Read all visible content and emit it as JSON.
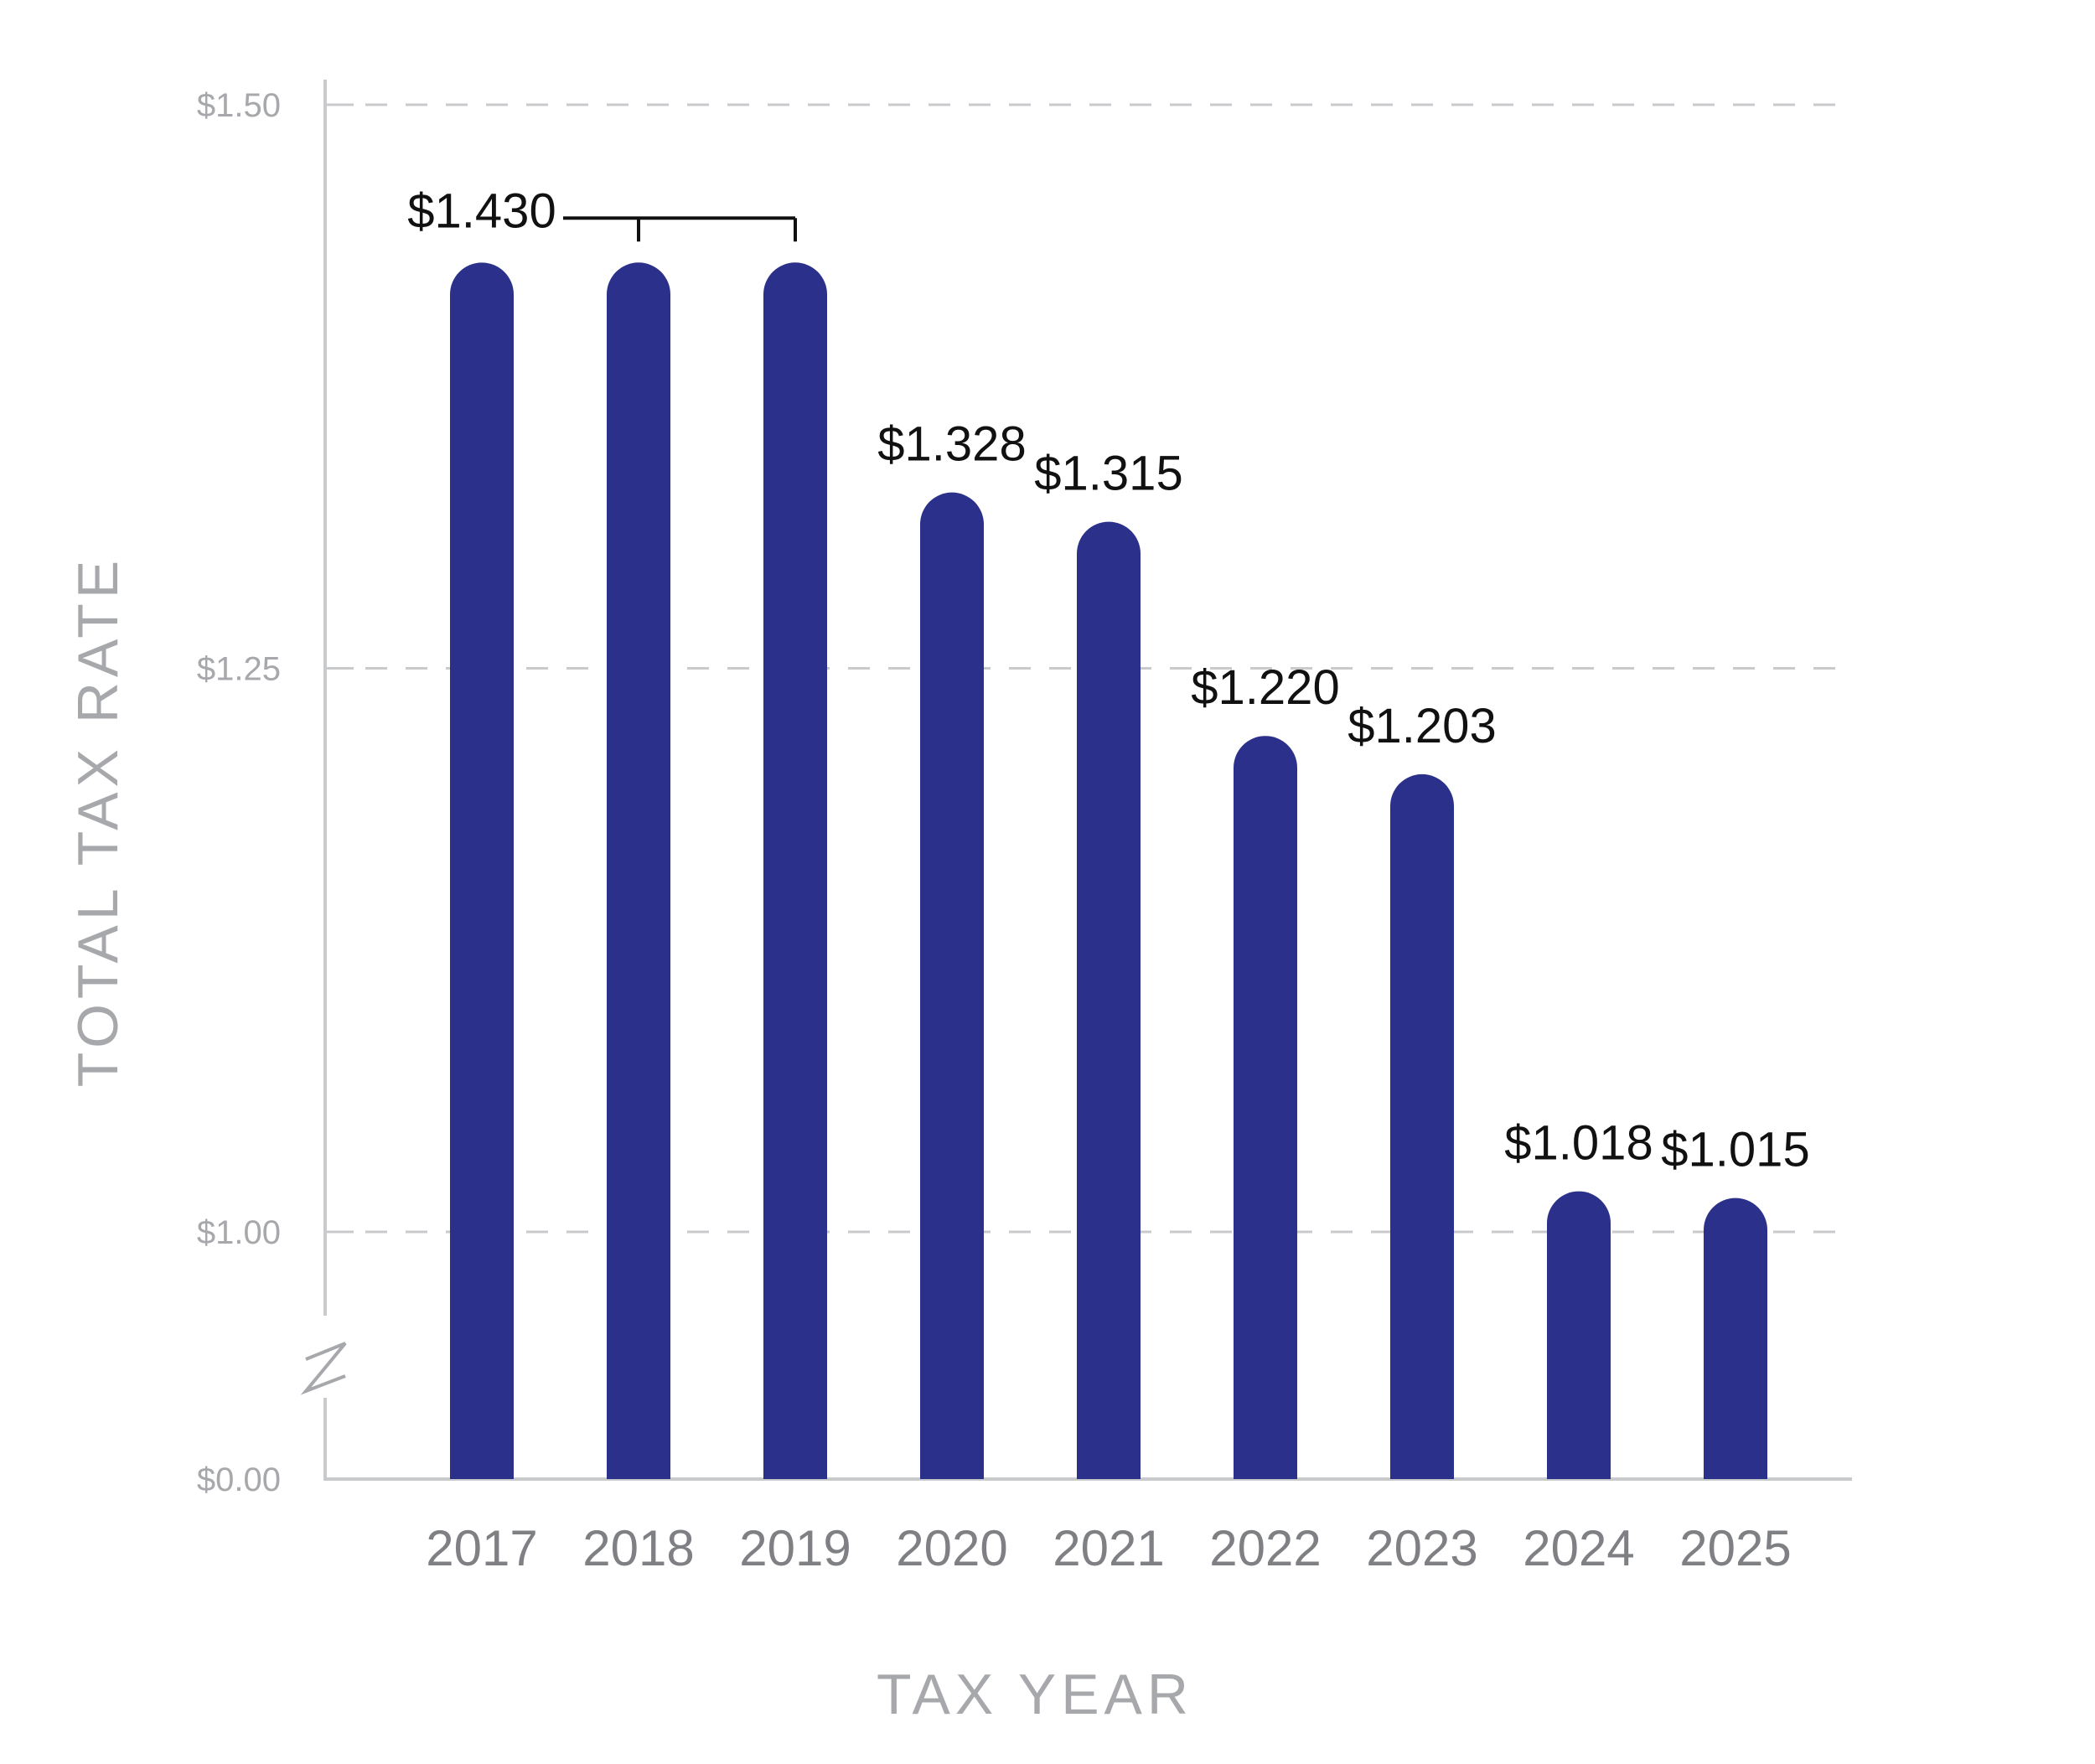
{
  "chart_data": {
    "type": "bar",
    "xlabel": "TAX YEAR",
    "ylabel": "TOTAL TAX RATE",
    "categories": [
      "2017",
      "2018",
      "2019",
      "2020",
      "2021",
      "2022",
      "2023",
      "2024",
      "2025"
    ],
    "values": [
      1.43,
      1.43,
      1.43,
      1.328,
      1.315,
      1.22,
      1.203,
      1.018,
      1.015
    ],
    "yticks": [
      {
        "value": 0.0,
        "label": "$0.00"
      },
      {
        "value": 1.0,
        "label": "$1.00"
      },
      {
        "value": 1.25,
        "label": "$1.25"
      },
      {
        "value": 1.5,
        "label": "$1.50"
      }
    ],
    "axis_break": {
      "from": 0.0,
      "to": 1.0
    },
    "grid": "horizontal-dashed",
    "bar_color": "#2b318a",
    "data_labels": [
      {
        "label": "$1.430",
        "applies_to": [
          "2017",
          "2018",
          "2019"
        ]
      },
      {
        "label": "$1.328",
        "applies_to": [
          "2020"
        ]
      },
      {
        "label": "$1.315",
        "applies_to": [
          "2021"
        ]
      },
      {
        "label": "$1.220",
        "applies_to": [
          "2022"
        ]
      },
      {
        "label": "$1.203",
        "applies_to": [
          "2023"
        ]
      },
      {
        "label": "$1.018",
        "applies_to": [
          "2024"
        ]
      },
      {
        "label": "$1.015",
        "applies_to": [
          "2025"
        ]
      }
    ]
  }
}
